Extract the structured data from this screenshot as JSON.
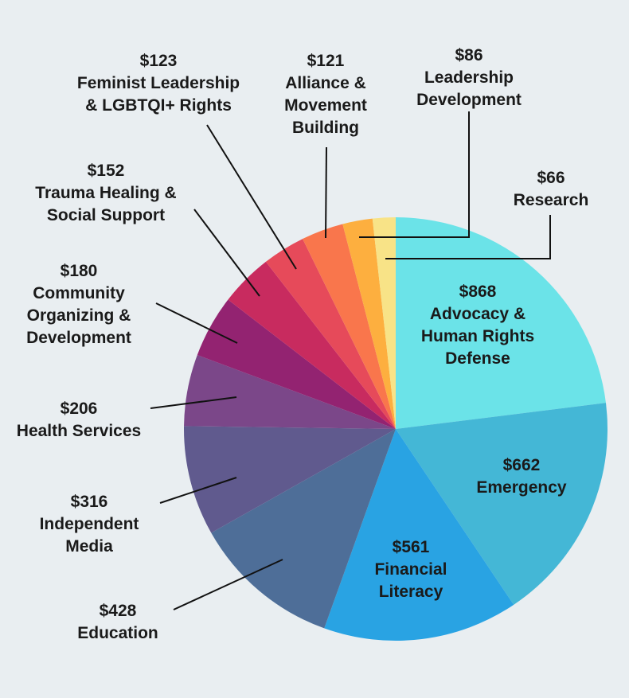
{
  "chart_data": {
    "type": "pie",
    "title": "",
    "slices": [
      {
        "value": 868,
        "amount": "$868",
        "label_lines": [
          "Advocacy &",
          "Human Rights",
          "Defense"
        ],
        "color": "#6be3e8"
      },
      {
        "value": 662,
        "amount": "$662",
        "label_lines": [
          "Emergency"
        ],
        "color": "#44b7d6"
      },
      {
        "value": 561,
        "amount": "$561",
        "label_lines": [
          "Financial",
          "Literacy"
        ],
        "color": "#29a3e3"
      },
      {
        "value": 428,
        "amount": "$428",
        "label_lines": [
          "Education"
        ],
        "color": "#4e6e98"
      },
      {
        "value": 316,
        "amount": "$316",
        "label_lines": [
          "Independent",
          "Media"
        ],
        "color": "#605a8e"
      },
      {
        "value": 206,
        "amount": "$206",
        "label_lines": [
          "Health Services"
        ],
        "color": "#7b4789"
      },
      {
        "value": 180,
        "amount": "$180",
        "label_lines": [
          "Community",
          "Organizing &",
          "Development"
        ],
        "color": "#932371"
      },
      {
        "value": 152,
        "amount": "$152",
        "label_lines": [
          "Trauma Healing &",
          "Social Support"
        ],
        "color": "#c82b5f"
      },
      {
        "value": 123,
        "amount": "$123",
        "label_lines": [
          "Feminist Leadership",
          "& LGBTQI+ Rights"
        ],
        "color": "#e64a5a"
      },
      {
        "value": 121,
        "amount": "$121",
        "label_lines": [
          "Alliance &",
          "Movement",
          "Building"
        ],
        "color": "#f9764c"
      },
      {
        "value": 86,
        "amount": "$86",
        "label_lines": [
          "Leadership",
          "Development"
        ],
        "color": "#fdaf3f"
      },
      {
        "value": 66,
        "amount": "$66",
        "label_lines": [
          "Research"
        ],
        "color": "#f8e387"
      }
    ]
  }
}
